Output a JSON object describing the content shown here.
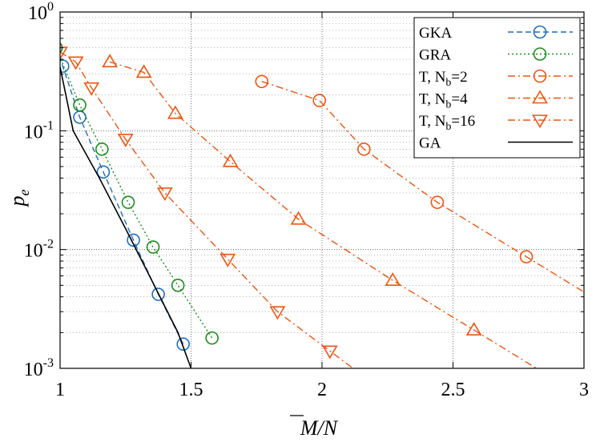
{
  "chart_data": {
    "type": "line",
    "xlabel_main": "M",
    "xlabel_rest": "/N",
    "ylabel_main": "p",
    "ylabel_sub": "e",
    "x_ticks": [
      "1",
      "1.5",
      "2",
      "2.5",
      "3"
    ],
    "y_ticks": [
      {
        "base": "10",
        "exp": "0"
      },
      {
        "base": "10",
        "exp": "-1"
      },
      {
        "base": "10",
        "exp": "-2"
      },
      {
        "base": "10",
        "exp": "-3"
      }
    ],
    "xlim": [
      1,
      3
    ],
    "ylim": [
      0.001,
      1
    ],
    "y_scale": "log",
    "grid": true,
    "legend_position": "top-right",
    "series": [
      {
        "name": "GKA",
        "color": "#1f6fbf",
        "dash": "dashed",
        "marker": "circle",
        "x": [
          0.985,
          1.01,
          1.075,
          1.165,
          1.28,
          1.375,
          1.47
        ],
        "y": [
          0.5,
          0.35,
          0.13,
          0.045,
          0.012,
          0.0042,
          0.0016
        ]
      },
      {
        "name": "GRA",
        "color": "#1a8f1a",
        "dash": "dotted",
        "marker": "circle",
        "x": [
          0.985,
          1.075,
          1.16,
          1.26,
          1.355,
          1.45,
          1.58
        ],
        "y": [
          0.5,
          0.165,
          0.07,
          0.025,
          0.0105,
          0.005,
          0.0018
        ]
      },
      {
        "name": "T, N_b=2",
        "label_main": "T, N",
        "label_sub": "b",
        "label_tail": "=2",
        "color": "#ee5511",
        "dash": "dashdot",
        "marker": "circle",
        "x": [
          1.77,
          1.99,
          2.16,
          2.44,
          2.78
        ],
        "y": [
          0.26,
          0.18,
          0.07,
          0.025,
          0.0087
        ]
      },
      {
        "name": "T, N_b=4",
        "label_main": "T, N",
        "label_sub": "b",
        "label_tail": "=4",
        "color": "#ee5511",
        "dash": "dashdot",
        "marker": "triangle-up",
        "x": [
          1.19,
          1.32,
          1.44,
          1.65,
          1.91,
          2.27,
          2.58
        ],
        "y": [
          0.38,
          0.31,
          0.14,
          0.055,
          0.018,
          0.0055,
          0.0021
        ]
      },
      {
        "name": "T, N_b=16",
        "label_main": "T, N",
        "label_sub": "b",
        "label_tail": "=16",
        "color": "#ee5511",
        "dash": "dashdot",
        "marker": "triangle-down",
        "x": [
          1.0,
          1.06,
          1.12,
          1.25,
          1.4,
          1.64,
          1.83,
          2.03
        ],
        "y": [
          0.46,
          0.38,
          0.23,
          0.085,
          0.03,
          0.0083,
          0.003,
          0.0014
        ]
      },
      {
        "name": "GA",
        "color": "#000000",
        "dash": "solid",
        "marker": "none",
        "x": [
          0.985,
          1.05,
          1.15,
          1.25,
          1.35,
          1.45,
          1.5
        ],
        "y": [
          0.5,
          0.1,
          0.04,
          0.015,
          0.0055,
          0.002,
          0.001
        ]
      }
    ]
  }
}
